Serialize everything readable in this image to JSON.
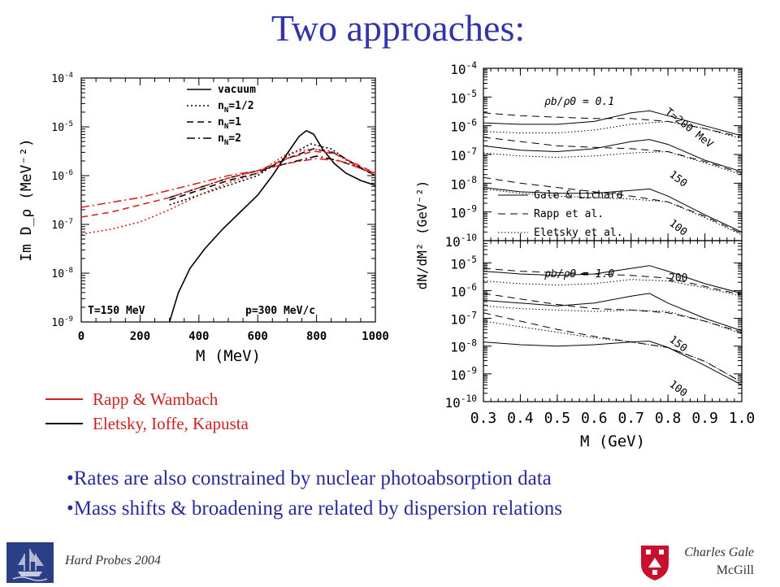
{
  "title": "Two approaches:",
  "chart_data": [
    {
      "type": "line",
      "title": "",
      "xlabel": "M (MeV)",
      "ylabel": "Im D_ρ (MeV⁻²)",
      "xlim": [
        0,
        1000
      ],
      "ylim_exp": [
        -9,
        -4
      ],
      "y_scale": "log",
      "x_ticks": [
        "0",
        "200",
        "400",
        "600",
        "800",
        "1000"
      ],
      "y_tick_exps": [
        -9,
        -8,
        -7,
        -6,
        -5,
        -4
      ],
      "legend_title_entries": [
        "vacuum",
        "n_N=1/2",
        "n_N=1",
        "n_N=2"
      ],
      "legend_display": [
        "vacuum",
        "n",
        "n",
        "n"
      ],
      "legend_sub": [
        "",
        "N",
        "N",
        "N"
      ],
      "legend_suffix": [
        "",
        "=1/2",
        "=1",
        "=2"
      ],
      "annotations": [
        "T=150 MeV",
        "p=300 MeV/c"
      ],
      "series": [
        {
          "name": "vacuum",
          "group": "vacuum",
          "color": "#000000",
          "dash": "",
          "x": [
            300,
            330,
            370,
            420,
            480,
            540,
            600,
            650,
            700,
            740,
            765,
            790,
            820,
            860,
            900,
            950,
            1000
          ],
          "log10y": [
            -9.0,
            -8.4,
            -7.9,
            -7.5,
            -7.1,
            -6.75,
            -6.4,
            -6.0,
            -5.55,
            -5.2,
            -5.08,
            -5.15,
            -5.45,
            -5.75,
            -5.95,
            -6.1,
            -6.2
          ]
        },
        {
          "name": "n_N=1/2",
          "group": "Eletsky",
          "color": "#000000",
          "dash": "2,3",
          "x": [
            300,
            400,
            500,
            600,
            700,
            780,
            850,
            920,
            1000
          ],
          "log10y": [
            -6.6,
            -6.4,
            -6.2,
            -6.0,
            -5.6,
            -5.35,
            -5.45,
            -5.75,
            -6.0
          ]
        },
        {
          "name": "n_N=1",
          "group": "Eletsky",
          "color": "#000000",
          "dash": "8,5",
          "x": [
            300,
            400,
            500,
            600,
            700,
            790,
            870,
            940,
            1000
          ],
          "log10y": [
            -6.5,
            -6.3,
            -6.1,
            -5.95,
            -5.65,
            -5.45,
            -5.55,
            -5.8,
            -6.0
          ]
        },
        {
          "name": "n_N=2",
          "group": "Eletsky",
          "color": "#000000",
          "dash": "10,4,2,4",
          "x": [
            300,
            400,
            500,
            600,
            700,
            800,
            880,
            950,
            1000
          ],
          "log10y": [
            -6.45,
            -6.25,
            -6.05,
            -5.9,
            -5.75,
            -5.6,
            -5.7,
            -5.85,
            -6.0
          ]
        },
        {
          "name": "n_N=1/2",
          "group": "Rapp & Wambach",
          "color": "#dd2222",
          "dash": "2,3",
          "x": [
            0,
            100,
            200,
            300,
            400,
            500,
            600,
            700,
            780,
            850,
            920,
            1000
          ],
          "log10y": [
            -7.2,
            -7.1,
            -6.95,
            -6.7,
            -6.4,
            -6.15,
            -5.95,
            -5.55,
            -5.45,
            -5.5,
            -5.75,
            -6.0
          ]
        },
        {
          "name": "n_N=1",
          "group": "Rapp & Wambach",
          "color": "#dd2222",
          "dash": "8,5",
          "x": [
            0,
            100,
            200,
            300,
            400,
            500,
            600,
            700,
            790,
            860,
            930,
            1000
          ],
          "log10y": [
            -6.85,
            -6.75,
            -6.6,
            -6.45,
            -6.25,
            -6.05,
            -5.9,
            -5.65,
            -5.5,
            -5.55,
            -5.75,
            -5.95
          ]
        },
        {
          "name": "n_N=2",
          "group": "Rapp & Wambach",
          "color": "#dd2222",
          "dash": "10,4,2,4",
          "x": [
            0,
            100,
            200,
            300,
            400,
            500,
            600,
            700,
            800,
            880,
            950,
            1000
          ],
          "log10y": [
            -6.65,
            -6.55,
            -6.45,
            -6.3,
            -6.15,
            -6.0,
            -5.9,
            -5.75,
            -5.65,
            -5.7,
            -5.85,
            -5.95
          ]
        }
      ]
    },
    {
      "type": "line",
      "xlabel": "M (GeV)",
      "ylabel": "dN/dM² (GeV⁻²)",
      "xlim": [
        0.3,
        1.0
      ],
      "y_scale": "log",
      "x_ticks": [
        "0.3",
        "0.4",
        "0.5",
        "0.6",
        "0.7",
        "0.8",
        "0.9",
        "1.0"
      ],
      "legend": [
        "Gale & Lichard",
        "Rapp et al.",
        "Eletsky et al."
      ],
      "panels": [
        {
          "density_label": "ρb/ρ0 = 0.1",
          "y_tick_exps": [
            -4,
            -5,
            -6,
            -7,
            -8,
            -9,
            -10
          ],
          "temperature_labels": [
            "T=200 MeV",
            "150",
            "100"
          ],
          "curves": [
            {
              "T": "200",
              "style": "solid",
              "x": [
                0.3,
                0.4,
                0.5,
                0.6,
                0.7,
                0.75,
                0.8,
                0.9,
                1.0
              ],
              "log10y": [
                -5.9,
                -5.95,
                -5.95,
                -5.85,
                -5.55,
                -5.48,
                -5.65,
                -6.0,
                -6.35
              ]
            },
            {
              "T": "200",
              "style": "dash",
              "x": [
                0.3,
                0.4,
                0.5,
                0.6,
                0.7,
                0.8,
                0.9,
                1.0
              ],
              "log10y": [
                -5.55,
                -5.65,
                -5.7,
                -5.75,
                -5.75,
                -5.85,
                -6.1,
                -6.4
              ]
            },
            {
              "T": "200",
              "style": "dot",
              "x": [
                0.3,
                0.4,
                0.5,
                0.6,
                0.7,
                0.8,
                0.9,
                1.0
              ],
              "log10y": [
                -6.2,
                -6.25,
                -6.25,
                -6.15,
                -5.95,
                -5.85,
                -6.1,
                -6.45
              ]
            },
            {
              "T": "150",
              "style": "solid",
              "x": [
                0.3,
                0.4,
                0.5,
                0.6,
                0.7,
                0.75,
                0.8,
                0.9,
                1.0
              ],
              "log10y": [
                -6.7,
                -6.85,
                -6.9,
                -6.8,
                -6.55,
                -6.48,
                -6.65,
                -7.2,
                -7.6
              ]
            },
            {
              "T": "150",
              "style": "dash",
              "x": [
                0.3,
                0.4,
                0.5,
                0.6,
                0.7,
                0.8,
                0.9,
                1.0
              ],
              "log10y": [
                -6.4,
                -6.55,
                -6.7,
                -6.75,
                -6.8,
                -6.9,
                -7.25,
                -7.65
              ]
            },
            {
              "T": "150",
              "style": "dot",
              "x": [
                0.3,
                0.4,
                0.5,
                0.6,
                0.7,
                0.8,
                0.9,
                1.0
              ],
              "log10y": [
                -6.95,
                -7.05,
                -7.1,
                -7.05,
                -6.95,
                -6.9,
                -7.3,
                -7.7
              ]
            },
            {
              "T": "100",
              "style": "solid",
              "x": [
                0.3,
                0.4,
                0.5,
                0.6,
                0.7,
                0.75,
                0.8,
                0.9,
                1.0
              ],
              "log10y": [
                -8.15,
                -8.3,
                -8.35,
                -8.35,
                -8.25,
                -8.2,
                -8.45,
                -9.1,
                -9.7
              ]
            },
            {
              "T": "100",
              "style": "dash",
              "x": [
                0.3,
                0.4,
                0.5,
                0.6,
                0.7,
                0.8,
                0.9,
                1.0
              ],
              "log10y": [
                -7.8,
                -8.0,
                -8.15,
                -8.3,
                -8.45,
                -8.65,
                -9.15,
                -9.75
              ]
            },
            {
              "T": "100",
              "style": "dot",
              "x": [
                0.3,
                0.4,
                0.5,
                0.6,
                0.7,
                0.8,
                0.9,
                1.0
              ],
              "log10y": [
                -8.2,
                -8.35,
                -8.45,
                -8.5,
                -8.55,
                -8.65,
                -9.2,
                -9.8
              ]
            }
          ]
        },
        {
          "density_label": "ρb/ρ0 = 1.0",
          "y_tick_exps": [
            -5,
            -6,
            -7,
            -8,
            -9,
            -10
          ],
          "temperature_labels": [
            "200",
            "150",
            "100"
          ],
          "curves": [
            {
              "T": "200",
              "style": "solid",
              "x": [
                0.3,
                0.4,
                0.5,
                0.6,
                0.7,
                0.75,
                0.8,
                0.9,
                1.0
              ],
              "log10y": [
                -5.3,
                -5.4,
                -5.45,
                -5.4,
                -5.2,
                -5.1,
                -5.3,
                -5.75,
                -6.1
              ]
            },
            {
              "T": "200",
              "style": "dash",
              "x": [
                0.3,
                0.4,
                0.5,
                0.6,
                0.7,
                0.8,
                0.9,
                1.0
              ],
              "log10y": [
                -5.2,
                -5.3,
                -5.35,
                -5.4,
                -5.45,
                -5.55,
                -5.85,
                -6.15
              ]
            },
            {
              "T": "200",
              "style": "dot",
              "x": [
                0.3,
                0.4,
                0.5,
                0.6,
                0.7,
                0.8,
                0.9,
                1.0
              ],
              "log10y": [
                -5.65,
                -5.75,
                -5.8,
                -5.75,
                -5.6,
                -5.65,
                -5.9,
                -6.2
              ]
            },
            {
              "T": "150",
              "style": "solid",
              "x": [
                0.3,
                0.4,
                0.5,
                0.6,
                0.7,
                0.75,
                0.8,
                0.9,
                1.0
              ],
              "log10y": [
                -6.35,
                -6.45,
                -6.55,
                -6.45,
                -6.2,
                -6.1,
                -6.45,
                -7.0,
                -7.45
              ]
            },
            {
              "T": "150",
              "style": "dash",
              "x": [
                0.3,
                0.4,
                0.5,
                0.6,
                0.7,
                0.8,
                0.9,
                1.0
              ],
              "log10y": [
                -6.1,
                -6.3,
                -6.5,
                -6.65,
                -6.7,
                -6.8,
                -7.1,
                -7.5
              ]
            },
            {
              "T": "150",
              "style": "dot",
              "x": [
                0.3,
                0.4,
                0.5,
                0.6,
                0.7,
                0.8,
                0.9,
                1.0
              ],
              "log10y": [
                -6.55,
                -6.65,
                -6.7,
                -6.75,
                -6.7,
                -6.75,
                -7.1,
                -7.55
              ]
            },
            {
              "T": "100",
              "style": "solid",
              "x": [
                0.3,
                0.4,
                0.5,
                0.6,
                0.7,
                0.75,
                0.8,
                0.9,
                1.0
              ],
              "log10y": [
                -7.85,
                -7.95,
                -8.0,
                -7.95,
                -7.85,
                -7.82,
                -8.05,
                -8.7,
                -9.4
              ]
            },
            {
              "T": "100",
              "style": "dash",
              "x": [
                0.3,
                0.4,
                0.5,
                0.6,
                0.7,
                0.8,
                0.9,
                1.0
              ],
              "log10y": [
                -6.8,
                -7.1,
                -7.4,
                -7.65,
                -7.85,
                -8.05,
                -8.55,
                -9.3
              ]
            },
            {
              "T": "100",
              "style": "dot",
              "x": [
                0.3,
                0.4,
                0.5,
                0.6,
                0.7,
                0.8,
                0.9,
                1.0
              ],
              "log10y": [
                -7.1,
                -7.3,
                -7.5,
                -7.7,
                -7.85,
                -8.05,
                -8.55,
                -9.3
              ]
            }
          ]
        }
      ]
    }
  ],
  "legend_bottom": [
    {
      "label": "Rapp & Wambach",
      "color": "#cc2222"
    },
    {
      "label": "Eletsky, Ioffe, Kapusta",
      "color": "#cc2222"
    }
  ],
  "bullets": [
    "•Rates are also constrained by nuclear photoabsorption data",
    "•Mass shifts & broadening are related by dispersion relations"
  ],
  "footer": {
    "left": "Hard Probes 2004",
    "right_name": "Charles Gale",
    "right_affiliation": "McGill"
  },
  "colors": {
    "title": "#3333aa",
    "bullets": "#2a2a99",
    "red": "#dd2222",
    "logo_left_bg": "#2b3f86",
    "logo_right": "#c8102e"
  },
  "icons": {
    "logo_left": "ship-crest-icon",
    "logo_right": "mcgill-crest-icon"
  }
}
